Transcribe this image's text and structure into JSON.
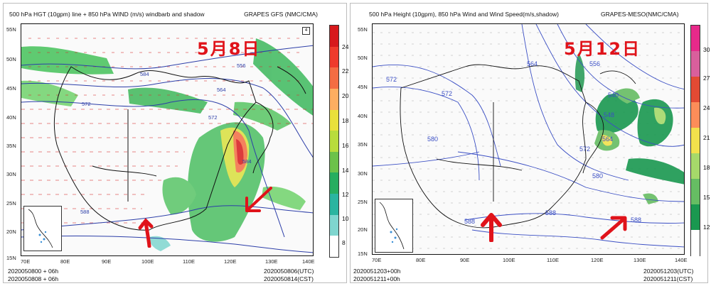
{
  "left": {
    "title": "500 hPa HGT (10gpm) line + 850 hPa WIND (m/s) windbarb and shadow",
    "source": "GRAPES GFS (NMC/CMA)",
    "date_label": "5月8日",
    "lat_ticks": [
      "55N",
      "50N",
      "45N",
      "40N",
      "35N",
      "30N",
      "25N",
      "20N",
      "15N"
    ],
    "lon_ticks": [
      "70E",
      "80E",
      "90E",
      "100E",
      "110E",
      "120E",
      "130E",
      "140E"
    ],
    "colorbar_ticks": [
      "24",
      "22",
      "20",
      "18",
      "16",
      "14",
      "12",
      "10",
      "8"
    ],
    "colorbar_colors": [
      "#d7191c",
      "#ef3b2c",
      "#f46d43",
      "#fdae61",
      "#e9e03b",
      "#b8dc3c",
      "#6cc24a",
      "#27ae60",
      "#2bb5a0",
      "#7fd6cf",
      "#ffffff"
    ],
    "contours": [
      "572",
      "564",
      "556",
      "588",
      "584",
      "584",
      "572"
    ],
    "footer_left_1": "2020050800 + 06h",
    "footer_left_2": "2020050808 + 06h",
    "footer_right_1": "2020050806(UTC)",
    "footer_right_2": "2020050814(CST)"
  },
  "right": {
    "title": "500 hPa Height (10gpm), 850 hPa Wind and Wind Speed(m/s,shadow)",
    "source": "GRAPES-MESO(NMC/CMA)",
    "date_label": "5月12日",
    "lat_ticks": [
      "55N",
      "50N",
      "45N",
      "40N",
      "35N",
      "30N",
      "25N",
      "20N",
      "15N"
    ],
    "lon_ticks": [
      "70E",
      "80E",
      "90E",
      "100E",
      "110E",
      "120E",
      "130E",
      "140E"
    ],
    "colorbar_ticks": [
      "30",
      "27",
      "24",
      "21",
      "18",
      "15",
      "12"
    ],
    "colorbar_colors": [
      "#e7298a",
      "#d95f9c",
      "#e34a33",
      "#fc8d59",
      "#f2e14c",
      "#a6d96a",
      "#66bd63",
      "#1a9850",
      "#ffffff"
    ],
    "contours": [
      "572",
      "572",
      "564",
      "556",
      "548",
      "540",
      "564",
      "572",
      "580",
      "580",
      "588",
      "588",
      "588"
    ],
    "footer_left_1": "2020051203+00h",
    "footer_left_2": "2020051211+00h",
    "footer_right_1": "2020051203(UTC)",
    "footer_right_2": "2020051211(CST)"
  }
}
